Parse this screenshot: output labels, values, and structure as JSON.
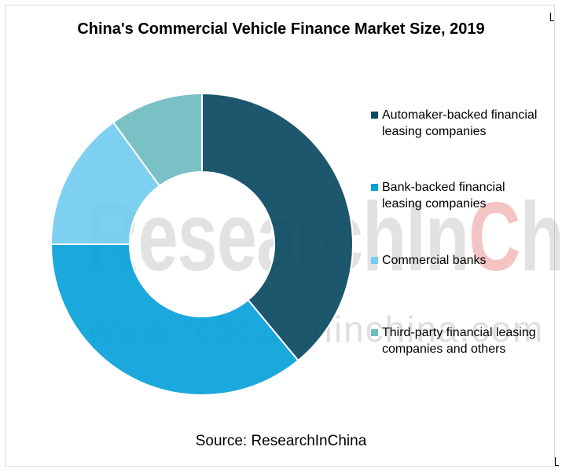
{
  "colors": {
    "automaker": "#0b4a63",
    "bank_leasing": "#0aa1da",
    "commercial_banks": "#74ccef",
    "third_party": "#6fbcc1"
  },
  "chart_data": {
    "type": "pie",
    "title": "China's Commercial Vehicle Finance Market Size, 2019",
    "donut": true,
    "legend_position": "right",
    "series": [
      {
        "slices": [
          {
            "label": "Automaker-backed financial leasing companies",
            "value": 39,
            "color": "#0b4a63"
          },
          {
            "label": "Bank-backed financial leasing companies",
            "value": 36,
            "color": "#0aa1da"
          },
          {
            "label": "Commercial banks",
            "value": 15,
            "color": "#74ccef"
          },
          {
            "label": "Third-party financial leasing companies and others",
            "value": 10,
            "color": "#6fbcc1"
          }
        ]
      }
    ]
  },
  "source": "Source: ResearchInChina",
  "watermark": {
    "brand_pre": "ResearchIn",
    "brand_accent": "C",
    "brand_post": "hina",
    "url": "www.researchinchina.com"
  }
}
